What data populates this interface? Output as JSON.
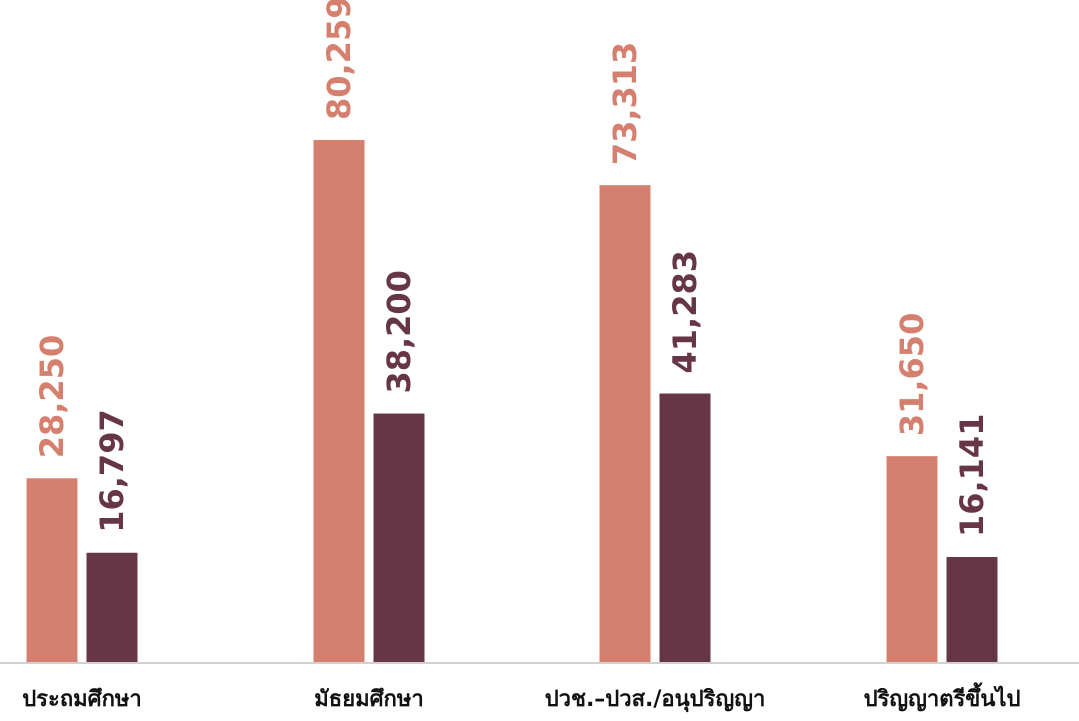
{
  "chart_data": {
    "type": "bar",
    "title": "",
    "xlabel": "",
    "ylabel": "",
    "categories": [
      "ประถมศึกษา",
      "มัธยมศึกษา",
      "ปวช.–ปวส./อนุปริญญา",
      "ปริญญาตรีขึ้นไป"
    ],
    "series": [
      {
        "values": [
          28250,
          80259,
          73313,
          31650
        ],
        "color": "#D5806F"
      },
      {
        "values": [
          16797,
          38200,
          41283,
          16141
        ],
        "color": "#663647"
      }
    ],
    "value_labels": [
      [
        "28,250",
        "80,259",
        "73,313",
        "31,650"
      ],
      [
        "16,797",
        "38,200",
        "41,283",
        "16,141"
      ]
    ],
    "ylim": [
      0,
      80259
    ],
    "grid": false,
    "legend": "none",
    "axis_color": "#D0D0D0"
  }
}
